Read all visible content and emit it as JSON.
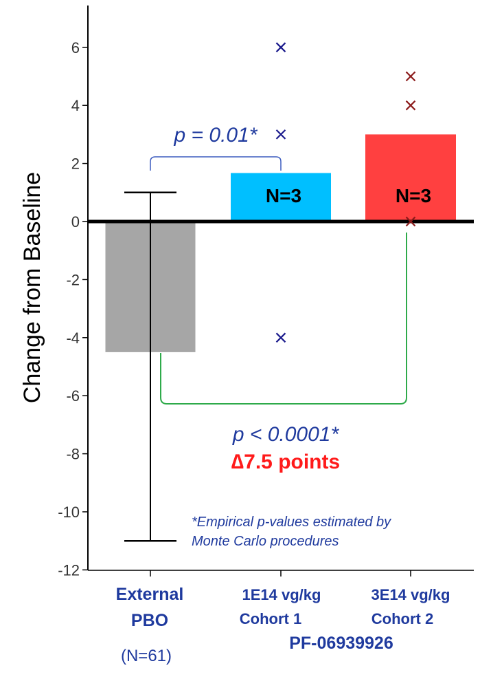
{
  "chart_data": {
    "type": "bar",
    "ylabel": "Change from Baseline",
    "ylim": [
      -12,
      7
    ],
    "yticks": [
      "6",
      "4",
      "2",
      "0",
      "-2",
      "-4",
      "-6",
      "-8",
      "-10",
      "-12"
    ],
    "grid": false,
    "categories": [
      {
        "line1": "External",
        "line2": "PBO",
        "line3": "(N=61)"
      },
      {
        "line1": "1E14 vg/kg",
        "line2": "Cohort 1"
      },
      {
        "line1": "3E14 vg/kg",
        "line2": "Cohort 2"
      }
    ],
    "group_label": "PF-06939926",
    "bars": [
      {
        "value": -4.5,
        "color": "#a6a6a6",
        "error_low": -11,
        "error_high": 1
      },
      {
        "value": 1.67,
        "color": "#00bfff",
        "n_label": "N=3"
      },
      {
        "value": 3.0,
        "color": "#ff4040",
        "n_label": "N=3"
      }
    ],
    "points": [
      {
        "category": 1,
        "values": [
          6,
          3,
          -4
        ],
        "color": "#1a1a8c"
      },
      {
        "category": 2,
        "values": [
          5,
          4,
          0
        ],
        "color": "#8b1a1a"
      }
    ],
    "annotations": {
      "pval_top": "p = 0.01*",
      "pval_bottom": "p < 0.0001*",
      "delta": "∆7.5 points",
      "footnote_line1": "*Empirical p-values estimated by",
      "footnote_line2": "Monte Carlo procedures"
    },
    "colors": {
      "annotation_blue": "#1f3a9e",
      "bracket_blue": "#3b5bbf",
      "bracket_green": "#2eaa4a",
      "delta_red": "#ff1a1a"
    }
  }
}
